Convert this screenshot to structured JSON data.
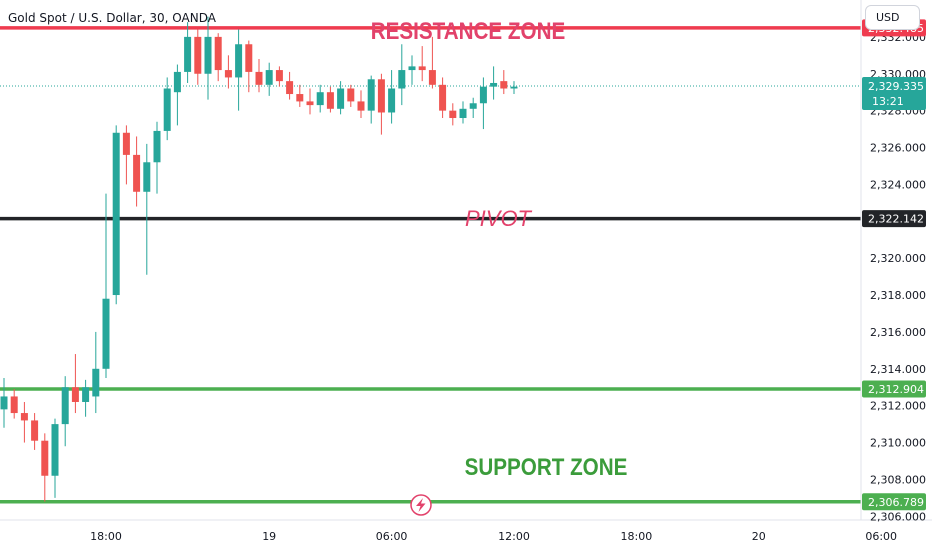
{
  "header": {
    "symbol_title": "Gold Spot / U.S. Dollar, 30, OANDA",
    "currency_button": "USD"
  },
  "annotations": {
    "resistance": "RESISTANCE ZONE",
    "pivot": "PIVOT",
    "support": "SUPPORT ZONE"
  },
  "colors": {
    "up": "#26a69a",
    "down": "#ef5350",
    "resistance": "#ef3b4f",
    "pivot": "#222428",
    "support": "#4caf50",
    "resistance_text": "#e2426b",
    "pivot_text": "#e2426b",
    "support_text": "#3b9c3b",
    "current": "#26a69a"
  },
  "chart_data": {
    "type": "candlestick",
    "yrange": [
      2305.8,
      2334.0
    ],
    "y_ticks": [
      "2,306.000",
      "2,308.000",
      "2,310.000",
      "2,312.000",
      "2,314.000",
      "2,316.000",
      "2,318.000",
      "2,320.000",
      "2,322.000",
      "2,324.000",
      "2,326.000",
      "2,328.000",
      "2,330.000",
      "2,332.000"
    ],
    "x_ticks": [
      {
        "label": "18:00",
        "bar": 10
      },
      {
        "label": "19",
        "bar": 26
      },
      {
        "label": "06:00",
        "bar": 38
      },
      {
        "label": "12:00",
        "bar": 50
      },
      {
        "label": "18:00",
        "bar": 62
      },
      {
        "label": "20",
        "bar": 74
      },
      {
        "label": "06:00",
        "bar": 86
      }
    ],
    "levels": [
      {
        "name": "resistance",
        "value": 2332.485,
        "label": "2,332.485"
      },
      {
        "name": "pivot",
        "value": 2322.142,
        "label": "2,322.142"
      },
      {
        "name": "support",
        "value": 2312.904,
        "label": "2,312.904"
      },
      {
        "name": "support",
        "value": 2306.789,
        "label": "2,306.789"
      }
    ],
    "current_price": {
      "value": 2329.335,
      "label": "2,329.335",
      "countdown": "13:21"
    },
    "candles": [
      {
        "o": 2311.8,
        "h": 2313.5,
        "l": 2310.8,
        "c": 2312.5
      },
      {
        "o": 2312.5,
        "h": 2312.9,
        "l": 2311.3,
        "c": 2311.6
      },
      {
        "o": 2311.6,
        "h": 2312.2,
        "l": 2310.0,
        "c": 2311.2
      },
      {
        "o": 2311.2,
        "h": 2311.6,
        "l": 2309.6,
        "c": 2310.1
      },
      {
        "o": 2310.1,
        "h": 2310.5,
        "l": 2306.8,
        "c": 2308.2
      },
      {
        "o": 2308.2,
        "h": 2311.3,
        "l": 2307.0,
        "c": 2311.0
      },
      {
        "o": 2311.0,
        "h": 2313.6,
        "l": 2309.8,
        "c": 2313.0
      },
      {
        "o": 2313.0,
        "h": 2314.8,
        "l": 2311.6,
        "c": 2312.2
      },
      {
        "o": 2312.2,
        "h": 2313.4,
        "l": 2311.4,
        "c": 2313.0
      },
      {
        "o": 2312.5,
        "h": 2316.0,
        "l": 2311.6,
        "c": 2314.0
      },
      {
        "o": 2314.0,
        "h": 2323.5,
        "l": 2313.5,
        "c": 2317.8
      },
      {
        "o": 2318.0,
        "h": 2327.2,
        "l": 2317.5,
        "c": 2326.8
      },
      {
        "o": 2326.8,
        "h": 2327.2,
        "l": 2324.0,
        "c": 2325.6
      },
      {
        "o": 2325.6,
        "h": 2326.6,
        "l": 2322.8,
        "c": 2323.6
      },
      {
        "o": 2323.6,
        "h": 2326.2,
        "l": 2319.1,
        "c": 2325.2
      },
      {
        "o": 2325.2,
        "h": 2327.4,
        "l": 2323.5,
        "c": 2326.9
      },
      {
        "o": 2326.9,
        "h": 2329.8,
        "l": 2326.4,
        "c": 2329.2
      },
      {
        "o": 2329.0,
        "h": 2330.5,
        "l": 2327.2,
        "c": 2330.1
      },
      {
        "o": 2330.1,
        "h": 2332.8,
        "l": 2329.5,
        "c": 2332.0
      },
      {
        "o": 2332.0,
        "h": 2332.4,
        "l": 2329.4,
        "c": 2330.0
      },
      {
        "o": 2330.0,
        "h": 2333.1,
        "l": 2328.6,
        "c": 2332.0
      },
      {
        "o": 2332.0,
        "h": 2332.2,
        "l": 2329.6,
        "c": 2330.2
      },
      {
        "o": 2330.2,
        "h": 2331.0,
        "l": 2329.2,
        "c": 2329.8
      },
      {
        "o": 2329.8,
        "h": 2332.4,
        "l": 2328.0,
        "c": 2331.6
      },
      {
        "o": 2331.6,
        "h": 2331.8,
        "l": 2329.0,
        "c": 2330.1
      },
      {
        "o": 2330.1,
        "h": 2330.8,
        "l": 2329.0,
        "c": 2329.4
      },
      {
        "o": 2329.4,
        "h": 2330.6,
        "l": 2328.8,
        "c": 2330.2
      },
      {
        "o": 2330.2,
        "h": 2330.4,
        "l": 2329.3,
        "c": 2329.6
      },
      {
        "o": 2329.6,
        "h": 2330.1,
        "l": 2328.6,
        "c": 2328.9
      },
      {
        "o": 2328.9,
        "h": 2329.4,
        "l": 2328.2,
        "c": 2328.5
      },
      {
        "o": 2328.5,
        "h": 2329.2,
        "l": 2327.8,
        "c": 2328.3
      },
      {
        "o": 2328.3,
        "h": 2329.4,
        "l": 2327.9,
        "c": 2329.0
      },
      {
        "o": 2329.0,
        "h": 2329.3,
        "l": 2327.9,
        "c": 2328.1
      },
      {
        "o": 2328.1,
        "h": 2329.6,
        "l": 2327.8,
        "c": 2329.2
      },
      {
        "o": 2329.2,
        "h": 2329.4,
        "l": 2328.2,
        "c": 2328.5
      },
      {
        "o": 2328.5,
        "h": 2329.1,
        "l": 2327.6,
        "c": 2328.0
      },
      {
        "o": 2328.0,
        "h": 2329.9,
        "l": 2327.3,
        "c": 2329.7
      },
      {
        "o": 2329.7,
        "h": 2330.0,
        "l": 2326.7,
        "c": 2327.9
      },
      {
        "o": 2327.9,
        "h": 2330.2,
        "l": 2327.3,
        "c": 2329.2
      },
      {
        "o": 2329.2,
        "h": 2331.6,
        "l": 2328.3,
        "c": 2330.2
      },
      {
        "o": 2330.2,
        "h": 2331.0,
        "l": 2329.4,
        "c": 2330.4
      },
      {
        "o": 2330.4,
        "h": 2331.5,
        "l": 2329.6,
        "c": 2330.2
      },
      {
        "o": 2330.2,
        "h": 2332.0,
        "l": 2329.2,
        "c": 2329.4
      },
      {
        "o": 2329.4,
        "h": 2329.8,
        "l": 2327.6,
        "c": 2328.0
      },
      {
        "o": 2328.0,
        "h": 2328.4,
        "l": 2327.2,
        "c": 2327.6
      },
      {
        "o": 2327.6,
        "h": 2328.5,
        "l": 2327.3,
        "c": 2328.1
      },
      {
        "o": 2328.1,
        "h": 2328.7,
        "l": 2327.6,
        "c": 2328.4
      },
      {
        "o": 2328.4,
        "h": 2329.8,
        "l": 2327.0,
        "c": 2329.3
      },
      {
        "o": 2329.3,
        "h": 2330.4,
        "l": 2328.6,
        "c": 2329.5
      },
      {
        "o": 2329.6,
        "h": 2330.2,
        "l": 2328.9,
        "c": 2329.2
      },
      {
        "o": 2329.2,
        "h": 2329.6,
        "l": 2328.9,
        "c": 2329.3
      }
    ]
  }
}
